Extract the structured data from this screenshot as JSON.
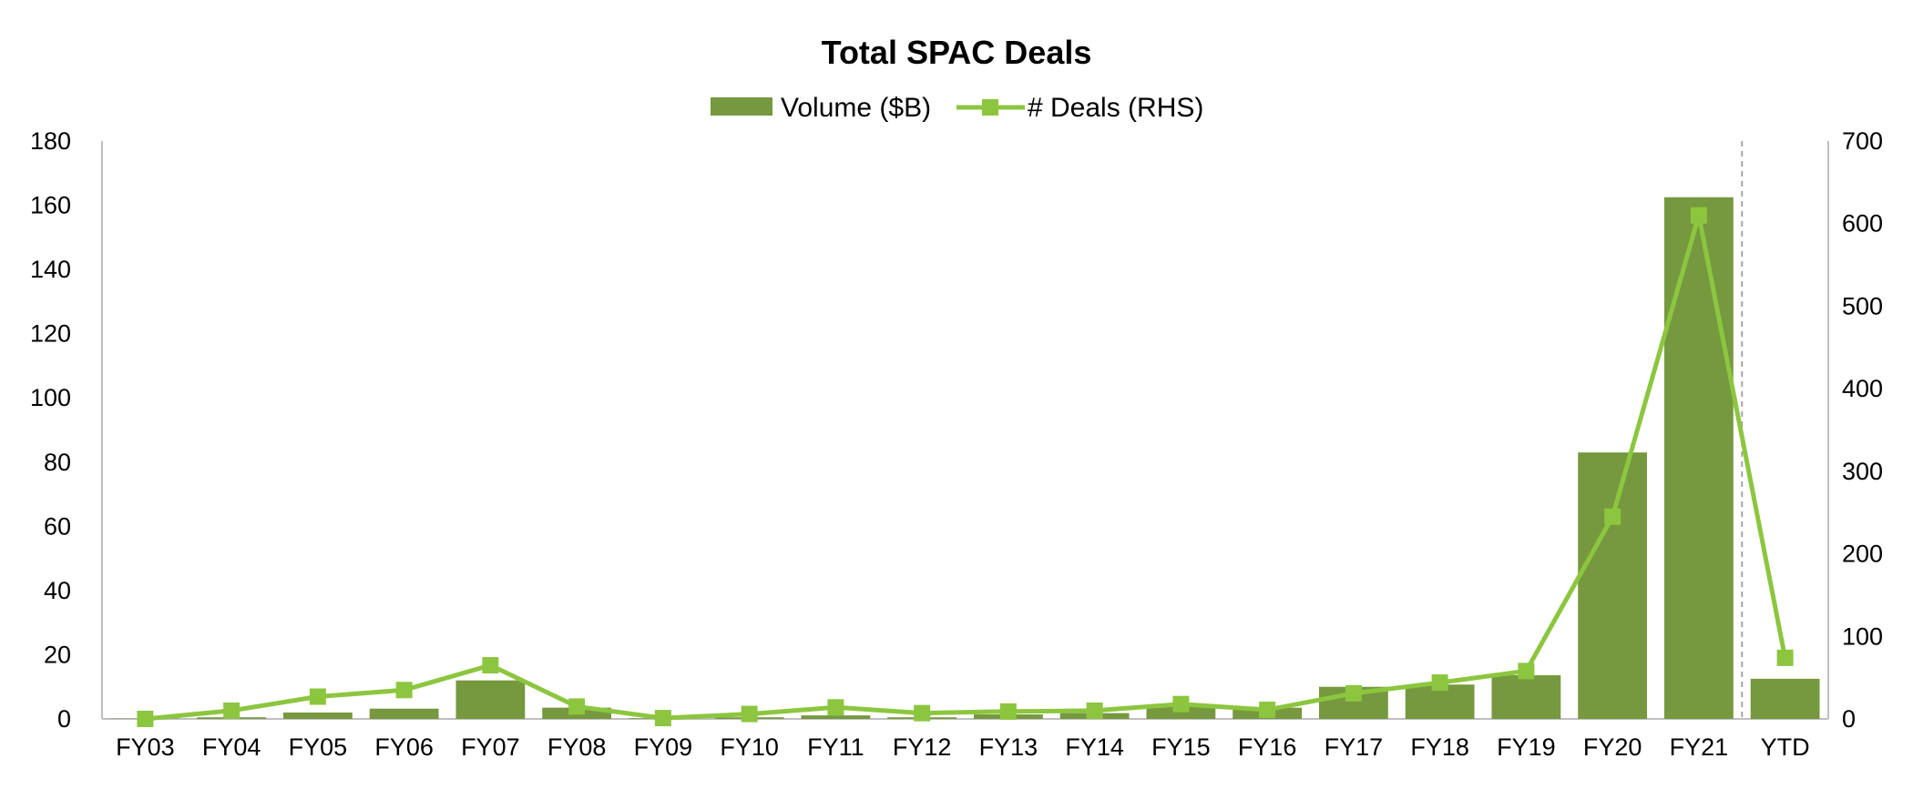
{
  "chart_data": {
    "type": "bar",
    "title": "Total SPAC Deals",
    "categories": [
      "FY03",
      "FY04",
      "FY05",
      "FY06",
      "FY07",
      "FY08",
      "FY09",
      "FY10",
      "FY11",
      "FY12",
      "FY13",
      "FY14",
      "FY15",
      "FY16",
      "FY17",
      "FY18",
      "FY19",
      "FY20",
      "FY21",
      "YTD"
    ],
    "series": [
      {
        "name": "Volume ($B)",
        "type": "bar",
        "axis": "left",
        "color": "#76983f",
        "values": [
          0.1,
          0.5,
          2.0,
          3.2,
          12.0,
          3.5,
          0.2,
          0.5,
          1.1,
          0.5,
          1.4,
          1.8,
          3.9,
          3.5,
          10.0,
          10.7,
          13.6,
          83.0,
          162.5,
          12.5
        ]
      },
      {
        "name": "# Deals (RHS)",
        "type": "line",
        "axis": "right",
        "color": "#8cc63f",
        "values": [
          0,
          10,
          27,
          35,
          65,
          15,
          1,
          6,
          14,
          7,
          9,
          10,
          18,
          11,
          31,
          44,
          58,
          245,
          610,
          74
        ]
      }
    ],
    "y_left": {
      "min": 0,
      "max": 180,
      "ticks": [
        0,
        20,
        40,
        60,
        80,
        100,
        120,
        140,
        160,
        180
      ]
    },
    "y_right": {
      "min": 0,
      "max": 700,
      "ticks": [
        0,
        100,
        200,
        300,
        400,
        500,
        600,
        700
      ]
    },
    "legend_position": "top-center",
    "grid": false,
    "divider_before": "YTD"
  }
}
